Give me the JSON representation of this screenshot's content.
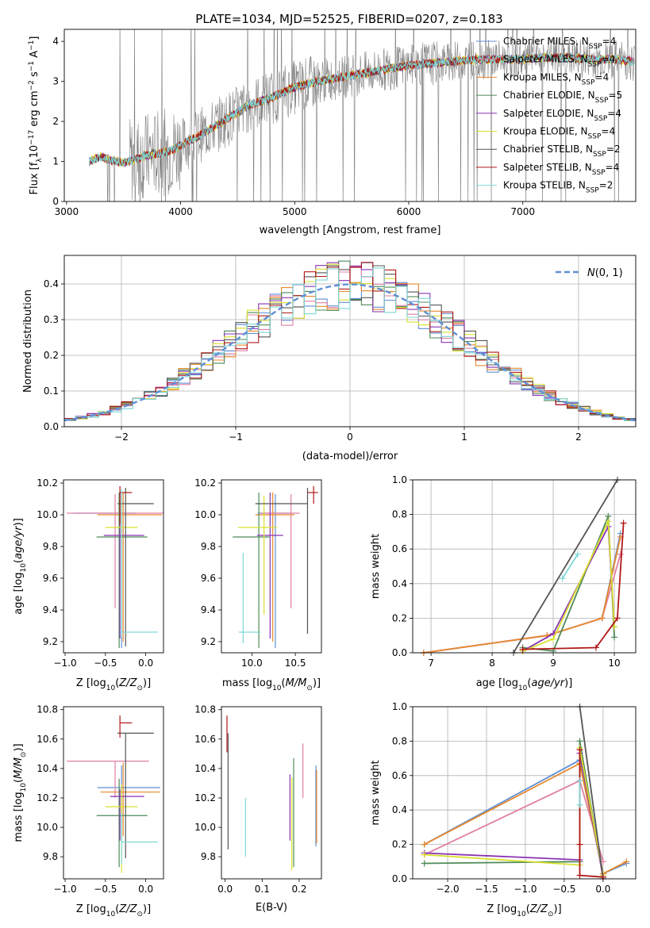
{
  "page_title": "PLATE=1034, MJD=52525, FIBERID=0207, z=0.183",
  "colors": {
    "Chabrier MILES": "#5f8fd6",
    "Salpeter MILES": "#e07fa6",
    "Kroupa MILES": "#e8892d",
    "Chabrier ELODIE": "#4e8a58",
    "Salpeter ELODIE": "#8a32b3",
    "Kroupa ELODIE": "#d9e02c",
    "Chabrier STELIB": "#555555",
    "Salpeter STELIB": "#b01818",
    "Kroupa STELIB": "#7fd6d6",
    "data": "#808080",
    "gauss": "#5f8fd6"
  },
  "chart_data": [
    {
      "id": "spectrum",
      "type": "line",
      "title": "PLATE=1034, MJD=52525, FIBERID=0207, z=0.183",
      "xlabel": "wavelength [Angstrom, rest frame]",
      "ylabel": "Flux [f_λ 10^-17 erg cm^-2 s^-1 A^-1]",
      "xlim": [
        2980,
        7990
      ],
      "ylim": [
        0,
        4.3
      ],
      "xticks": [
        3000,
        4000,
        5000,
        6000,
        7000
      ],
      "yticks": [
        0,
        1,
        2,
        3,
        4
      ],
      "legend": [
        "Chabrier MILES, N_SSP=4",
        "Salpeter MILES, N_SSP=4",
        "Kroupa MILES, N_SSP=4",
        "Chabrier ELODIE, N_SSP=5",
        "Salpeter ELODIE, N_SSP=4",
        "Kroupa ELODIE, N_SSP=4",
        "Chabrier STELIB, N_SSP=2",
        "Salpeter STELIB, N_SSP=4",
        "Kroupa STELIB, N_SSP=2"
      ],
      "legend_position": "top-right",
      "continuum": {
        "x": [
          3200,
          3300,
          3400,
          3500,
          3600,
          3700,
          3800,
          3900,
          4000,
          4200,
          4400,
          4600,
          4800,
          5000,
          5200,
          5400,
          5600,
          5800,
          6000,
          6200,
          6400,
          6600,
          6800,
          7000,
          7200,
          7400,
          7600,
          7800,
          7980
        ],
        "y": [
          1.0,
          1.12,
          1.02,
          0.97,
          1.05,
          1.15,
          1.2,
          1.25,
          1.4,
          1.7,
          2.05,
          2.4,
          2.6,
          2.85,
          3.0,
          3.1,
          3.2,
          3.3,
          3.4,
          3.45,
          3.5,
          3.55,
          3.55,
          3.55,
          3.6,
          3.6,
          3.55,
          3.55,
          3.5
        ]
      }
    },
    {
      "id": "residuals",
      "type": "histogram",
      "xlabel": "(data-model)/error",
      "ylabel": "Normed distribution",
      "xlim": [
        -2.5,
        2.5
      ],
      "ylim": [
        0,
        0.48
      ],
      "xticks": [
        -2,
        -1,
        0,
        1,
        2
      ],
      "yticks": [
        0.0,
        0.1,
        0.2,
        0.3,
        0.4
      ],
      "bin_width": 0.1,
      "legend": [
        "N(0,1)"
      ],
      "legend_position": "top-right",
      "grid": true
    },
    {
      "id": "age_vs_Z",
      "type": "errorbar",
      "xlabel": "Z [log10(Z/Z_sun)]",
      "ylabel": "age [log10(age/yr)]",
      "xlim": [
        -1.02,
        0.22
      ],
      "ylim": [
        9.13,
        10.22
      ],
      "xticks": [
        -1.0,
        -0.5,
        0.0
      ],
      "yticks": [
        9.2,
        9.4,
        9.6,
        9.8,
        10.0,
        10.2
      ],
      "points": [
        {
          "model": "Chabrier MILES",
          "x": -0.3,
          "xerr": [
            0.6,
            0.18
          ],
          "y": 10.01,
          "yerr": [
            0.85,
            0.12
          ]
        },
        {
          "model": "Salpeter MILES",
          "x": -0.38,
          "xerr": [
            0.6,
            0.62
          ],
          "y": 10.01,
          "yerr": [
            0.6,
            0.12
          ]
        },
        {
          "model": "Kroupa MILES",
          "x": -0.28,
          "xerr": [
            0.32,
            0.48
          ],
          "y": 10.0,
          "yerr": [
            0.8,
            0.14
          ]
        },
        {
          "model": "Chabrier ELODIE",
          "x": -0.33,
          "xerr": [
            0.28,
            0.35
          ],
          "y": 9.86,
          "yerr": [
            0.7,
            0.28
          ]
        },
        {
          "model": "Salpeter ELODIE",
          "x": -0.32,
          "xerr": [
            0.2,
            0.3
          ],
          "y": 9.87,
          "yerr": [
            0.65,
            0.27
          ]
        },
        {
          "model": "Kroupa ELODIE",
          "x": -0.3,
          "xerr": [
            0.2,
            0.2
          ],
          "y": 9.92,
          "yerr": [
            0.55,
            0.2
          ]
        },
        {
          "model": "Chabrier STELIB",
          "x": -0.25,
          "xerr": [
            0.1,
            0.35
          ],
          "y": 10.07,
          "yerr": [
            0.9,
            0.1
          ]
        },
        {
          "model": "Salpeter STELIB",
          "x": -0.32,
          "xerr": [
            0.0,
            0.15
          ],
          "y": 10.14,
          "yerr": [
            0.2,
            0.04
          ]
        },
        {
          "model": "Kroupa STELIB",
          "x": -0.3,
          "xerr": [
            0.0,
            0.45
          ],
          "y": 9.26,
          "yerr": [
            0.03,
            0.9
          ]
        }
      ]
    },
    {
      "id": "age_vs_mass",
      "type": "errorbar",
      "xlabel": "mass [log10(M/M_sun)]",
      "ylabel": "",
      "xlim": [
        9.65,
        10.8
      ],
      "ylim": [
        9.13,
        10.22
      ],
      "xticks": [
        10.0,
        10.5
      ],
      "yticks": [
        9.2,
        9.4,
        9.6,
        9.8,
        10.0,
        10.2
      ],
      "points": [
        {
          "model": "Chabrier MILES",
          "x": 10.27,
          "xerr": [
            0.2,
            0.18
          ],
          "y": 10.01,
          "yerr": [
            0.85,
            0.12
          ]
        },
        {
          "model": "Salpeter MILES",
          "x": 10.45,
          "xerr": [
            0.35,
            0.1
          ],
          "y": 10.01,
          "yerr": [
            0.6,
            0.12
          ]
        },
        {
          "model": "Kroupa MILES",
          "x": 10.24,
          "xerr": [
            0.2,
            0.25
          ],
          "y": 10.0,
          "yerr": [
            0.8,
            0.14
          ]
        },
        {
          "model": "Chabrier ELODIE",
          "x": 10.08,
          "xerr": [
            0.3,
            0.12
          ],
          "y": 9.86,
          "yerr": [
            0.7,
            0.28
          ]
        },
        {
          "model": "Salpeter ELODIE",
          "x": 10.21,
          "xerr": [
            0.15,
            0.15
          ],
          "y": 9.87,
          "yerr": [
            0.65,
            0.27
          ]
        },
        {
          "model": "Kroupa ELODIE",
          "x": 10.14,
          "xerr": [
            0.3,
            0.15
          ],
          "y": 9.92,
          "yerr": [
            0.55,
            0.2
          ]
        },
        {
          "model": "Chabrier STELIB",
          "x": 10.64,
          "xerr": [
            0.6,
            0.0
          ],
          "y": 10.07,
          "yerr": [
            0.82,
            0.1
          ]
        },
        {
          "model": "Salpeter STELIB",
          "x": 10.71,
          "xerr": [
            0.07,
            0.05
          ],
          "y": 10.14,
          "yerr": [
            0.07,
            0.04
          ]
        },
        {
          "model": "Kroupa STELIB",
          "x": 9.9,
          "xerr": [
            0.05,
            0.2
          ],
          "y": 9.26,
          "yerr": [
            0.07,
            0.5
          ]
        }
      ]
    },
    {
      "id": "mass_weight_vs_age",
      "type": "line",
      "xlabel": "age [log10(age/yr)]",
      "ylabel": "mass weight",
      "xlim": [
        6.7,
        10.35
      ],
      "ylim": [
        0,
        1.0
      ],
      "xticks": [
        7,
        8,
        9,
        10
      ],
      "yticks": [
        0.0,
        0.2,
        0.4,
        0.6,
        0.8,
        1.0
      ],
      "grid": true,
      "series": [
        {
          "model": "Chabrier MILES",
          "x": [
            6.88,
            8.9,
            9.8,
            10.1
          ],
          "y": [
            0.0,
            0.1,
            0.2,
            0.69
          ]
        },
        {
          "model": "Salpeter MILES",
          "x": [
            6.88,
            8.9,
            9.8,
            10.1
          ],
          "y": [
            0.0,
            0.1,
            0.2,
            0.57
          ]
        },
        {
          "model": "Kroupa MILES",
          "x": [
            6.88,
            8.9,
            9.8,
            10.1
          ],
          "y": [
            0.0,
            0.1,
            0.2,
            0.67
          ]
        },
        {
          "model": "Chabrier ELODIE",
          "x": [
            8.5,
            9.0,
            9.9,
            10.0
          ],
          "y": [
            0.03,
            0.01,
            0.79,
            0.09
          ]
        },
        {
          "model": "Salpeter ELODIE",
          "x": [
            8.5,
            9.0,
            9.9,
            10.0
          ],
          "y": [
            0.01,
            0.11,
            0.73,
            0.15
          ]
        },
        {
          "model": "Kroupa ELODIE",
          "x": [
            8.5,
            9.0,
            9.9,
            10.0
          ],
          "y": [
            0.01,
            0.08,
            0.76,
            0.15
          ]
        },
        {
          "model": "Chabrier STELIB",
          "x": [
            8.35,
            10.05
          ],
          "y": [
            0.0,
            1.0
          ]
        },
        {
          "model": "Salpeter STELIB",
          "x": [
            8.5,
            9.7,
            10.05,
            10.15
          ],
          "y": [
            0.02,
            0.03,
            0.2,
            0.75
          ]
        },
        {
          "model": "Kroupa STELIB",
          "x": [
            9.15,
            9.4
          ],
          "y": [
            0.43,
            0.57
          ]
        }
      ]
    },
    {
      "id": "mass_vs_Z",
      "type": "errorbar",
      "xlabel": "Z [log10(Z/Z_sun)]",
      "ylabel": "mass [log10(M/M_sun)]",
      "xlim": [
        -1.02,
        0.22
      ],
      "ylim": [
        9.65,
        10.82
      ],
      "xticks": [
        -1.0,
        -0.5,
        0.0
      ],
      "yticks": [
        9.8,
        10.0,
        10.2,
        10.4,
        10.6,
        10.8
      ],
      "points": [
        {
          "model": "Chabrier MILES",
          "x": -0.3,
          "xerr": [
            0.3,
            0.48
          ],
          "y": 10.27,
          "yerr": [
            0.35,
            0.15
          ]
        },
        {
          "model": "Salpeter MILES",
          "x": -0.38,
          "xerr": [
            0.6,
            0.42
          ],
          "y": 10.45,
          "yerr": [
            0.25,
            0.0
          ]
        },
        {
          "model": "Kroupa MILES",
          "x": -0.28,
          "xerr": [
            0.28,
            0.46
          ],
          "y": 10.24,
          "yerr": [
            0.3,
            0.2
          ]
        },
        {
          "model": "Chabrier ELODIE",
          "x": -0.33,
          "xerr": [
            0.28,
            0.35
          ],
          "y": 10.08,
          "yerr": [
            0.35,
            0.25
          ]
        },
        {
          "model": "Salpeter ELODIE",
          "x": -0.32,
          "xerr": [
            0.12,
            0.3
          ],
          "y": 10.21,
          "yerr": [
            0.3,
            0.05
          ]
        },
        {
          "model": "Kroupa ELODIE",
          "x": -0.3,
          "xerr": [
            0.2,
            0.2
          ],
          "y": 10.14,
          "yerr": [
            0.45,
            0.15
          ]
        },
        {
          "model": "Chabrier STELIB",
          "x": -0.25,
          "xerr": [
            0.1,
            0.35
          ],
          "y": 10.64,
          "yerr": [
            0.85,
            0.0
          ]
        },
        {
          "model": "Salpeter STELIB",
          "x": -0.32,
          "xerr": [
            0.0,
            0.15
          ],
          "y": 10.71,
          "yerr": [
            0.1,
            0.05
          ]
        },
        {
          "model": "Kroupa STELIB",
          "x": -0.3,
          "xerr": [
            0.0,
            0.45
          ],
          "y": 9.9,
          "yerr": [
            0.15,
            0.2
          ]
        }
      ]
    },
    {
      "id": "mass_vs_ebv",
      "type": "errorbar",
      "xlabel": "E(B-V)",
      "ylabel": "",
      "xlim": [
        -0.01,
        0.26
      ],
      "ylim": [
        9.65,
        10.82
      ],
      "xticks": [
        0.0,
        0.1,
        0.2
      ],
      "yticks": [
        9.8,
        10.0,
        10.2,
        10.4,
        10.6,
        10.8
      ],
      "points": [
        {
          "model": "Chabrier MILES",
          "x": 0.245,
          "y": 10.27,
          "yerr": [
            0.4,
            0.15
          ]
        },
        {
          "model": "Salpeter MILES",
          "x": 0.21,
          "y": 10.45,
          "yerr": [
            0.25,
            0.12
          ]
        },
        {
          "model": "Kroupa MILES",
          "x": 0.247,
          "y": 10.24,
          "yerr": [
            0.35,
            0.15
          ]
        },
        {
          "model": "Chabrier ELODIE",
          "x": 0.185,
          "y": 10.08,
          "yerr": [
            0.35,
            0.39
          ]
        },
        {
          "model": "Salpeter ELODIE",
          "x": 0.175,
          "y": 10.21,
          "yerr": [
            0.3,
            0.15
          ]
        },
        {
          "model": "Kroupa ELODIE",
          "x": 0.18,
          "y": 10.14,
          "yerr": [
            0.43,
            0.2
          ]
        },
        {
          "model": "Chabrier STELIB",
          "x": 0.008,
          "y": 10.64,
          "yerr": [
            0.79,
            0.0
          ]
        },
        {
          "model": "Salpeter STELIB",
          "x": 0.005,
          "y": 10.71,
          "yerr": [
            0.2,
            0.05
          ]
        },
        {
          "model": "Kroupa STELIB",
          "x": 0.055,
          "y": 9.9,
          "yerr": [
            0.1,
            0.3
          ]
        }
      ]
    },
    {
      "id": "mass_weight_vs_Z",
      "type": "line",
      "xlabel": "Z [log10(Z/Z_sun)]",
      "ylabel": "mass weight",
      "xlim": [
        -2.45,
        0.42
      ],
      "ylim": [
        0,
        1.0
      ],
      "xticks": [
        -2.0,
        -1.5,
        -1.0,
        -0.5,
        0.0
      ],
      "yticks": [
        0.0,
        0.2,
        0.4,
        0.6,
        0.8,
        1.0
      ],
      "grid": true,
      "series": [
        {
          "model": "Chabrier MILES",
          "x": [
            -2.3,
            -0.3,
            0.0,
            0.3
          ],
          "y": [
            0.2,
            0.69,
            0.03,
            0.09
          ]
        },
        {
          "model": "Salpeter MILES",
          "x": [
            -2.3,
            -0.3,
            0.0
          ],
          "y": [
            0.14,
            0.57,
            0.1
          ]
        },
        {
          "model": "Kroupa MILES",
          "x": [
            -2.3,
            -0.3,
            0.0,
            0.3
          ],
          "y": [
            0.2,
            0.67,
            0.03,
            0.1
          ]
        },
        {
          "model": "Chabrier ELODIE",
          "x": [
            -2.3,
            -0.3,
            -0.3,
            0.0
          ],
          "y": [
            0.09,
            0.1,
            0.8,
            0.01
          ]
        },
        {
          "model": "Salpeter ELODIE",
          "x": [
            -2.3,
            -0.3,
            -0.3,
            0.0
          ],
          "y": [
            0.15,
            0.11,
            0.73,
            0.01
          ]
        },
        {
          "model": "Kroupa ELODIE",
          "x": [
            -2.3,
            -0.3,
            -0.3,
            0.0
          ],
          "y": [
            0.14,
            0.08,
            0.76,
            0.02
          ]
        },
        {
          "model": "Chabrier STELIB",
          "x": [
            -0.3,
            0.0
          ],
          "y": [
            1.0,
            0.0
          ]
        },
        {
          "model": "Salpeter STELIB",
          "x": [
            -0.3,
            -0.3,
            -0.3,
            0.0
          ],
          "y": [
            0.75,
            0.2,
            0.02,
            0.01
          ]
        },
        {
          "model": "Kroupa STELIB",
          "x": [
            -0.3,
            -0.3
          ],
          "y": [
            0.43,
            0.57
          ]
        }
      ]
    }
  ]
}
